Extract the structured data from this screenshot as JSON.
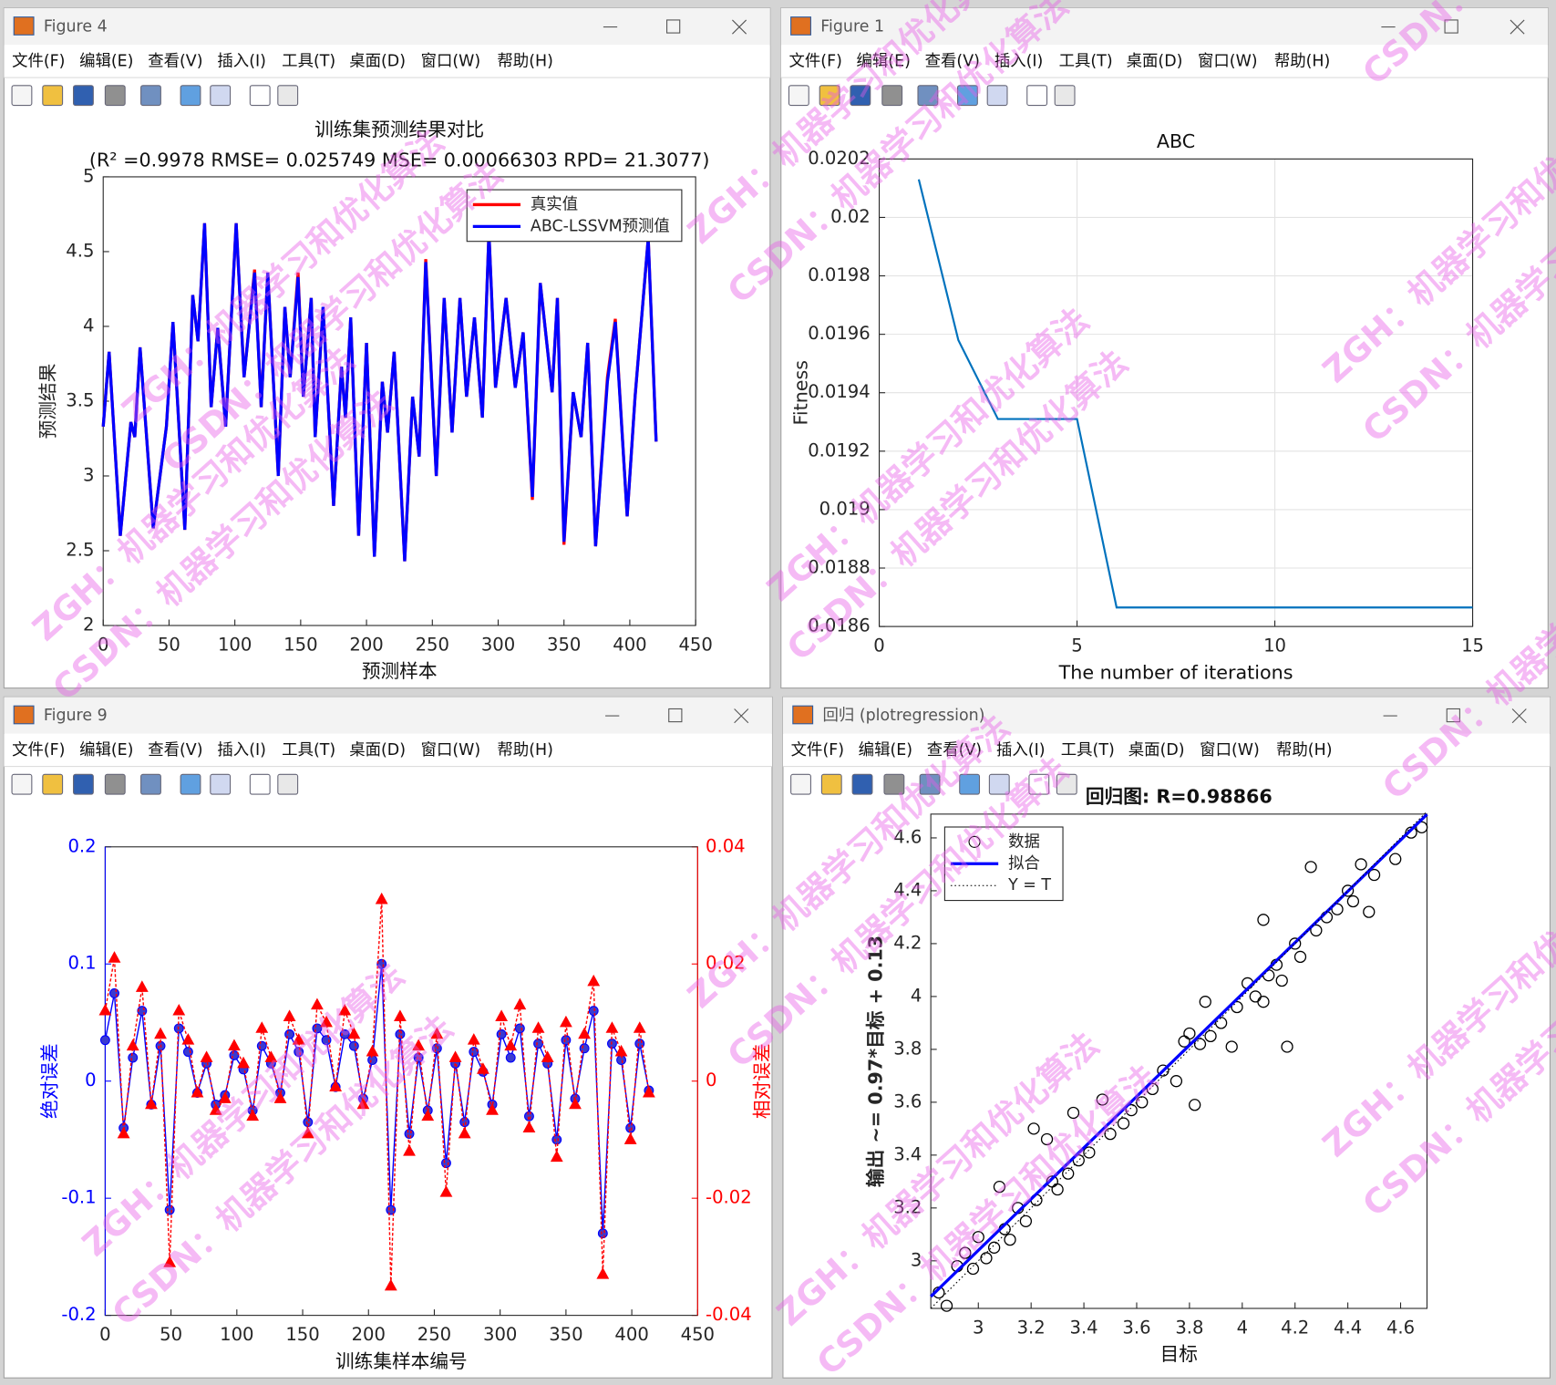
{
  "menu": [
    "文件(F)",
    "编辑(E)",
    "查看(V)",
    "插入(I)",
    "工具(T)",
    "桌面(D)",
    "窗口(W)",
    "帮助(H)"
  ],
  "watermarks": [
    "ZGH：机器学习和优化算法",
    "CSDN：机器学习和优化算法"
  ],
  "windows": [
    {
      "title": "Figure 4"
    },
    {
      "title": "Figure 1"
    },
    {
      "title": "Figure 9"
    },
    {
      "title": "回归 (plotregression)"
    }
  ],
  "chart_data": [
    {
      "type": "line",
      "title": "训练集预测结果对比",
      "subtitle": "(R² =0.9978 RMSE= 0.025749 MSE= 0.00066303 RPD= 21.3077)",
      "xlabel": "预测样本",
      "ylabel": "预测结果",
      "xlim": [
        0,
        450
      ],
      "ylim": [
        2,
        5
      ],
      "xticks": [
        0,
        50,
        100,
        150,
        200,
        250,
        300,
        350,
        400,
        450
      ],
      "yticks": [
        2,
        2.5,
        3,
        3.5,
        4,
        4.5,
        5
      ],
      "grid": false,
      "legend": "upper right",
      "x": [
        0,
        4.5,
        13,
        21,
        24,
        28,
        38,
        48,
        53,
        62,
        68,
        72,
        77,
        82,
        87,
        93,
        101,
        107,
        115,
        120,
        125,
        133,
        138,
        142,
        148,
        152,
        158,
        161,
        167,
        175,
        181,
        184,
        188,
        194,
        200,
        206,
        212,
        216,
        221,
        229,
        235,
        240,
        245,
        253,
        259,
        265,
        271,
        276,
        282,
        288,
        293,
        298,
        306,
        313,
        319,
        326,
        332,
        341,
        345,
        350,
        357,
        363,
        368,
        374,
        383,
        389,
        398,
        404,
        414,
        420
      ],
      "series": [
        {
          "name": "真实值",
          "color": "#ff0000",
          "style": "solid",
          "values": [
            3.33,
            3.83,
            2.6,
            3.36,
            3.26,
            3.86,
            2.65,
            3.33,
            4.03,
            2.64,
            4.21,
            3.9,
            4.69,
            3.46,
            3.99,
            3.33,
            4.69,
            3.66,
            4.38,
            3.46,
            4.36,
            3.0,
            4.13,
            3.66,
            4.36,
            3.53,
            4.19,
            3.26,
            4.13,
            2.8,
            3.73,
            3.39,
            4.06,
            2.6,
            3.89,
            2.46,
            3.63,
            3.29,
            3.83,
            2.43,
            3.53,
            3.13,
            4.45,
            3.0,
            4.19,
            3.29,
            4.19,
            3.53,
            4.06,
            3.39,
            4.63,
            3.59,
            4.19,
            3.59,
            3.96,
            2.84,
            4.29,
            3.56,
            4.19,
            2.54,
            3.56,
            3.26,
            3.89,
            2.53,
            3.66,
            4.05,
            2.73,
            3.53,
            4.59,
            3.23
          ]
        },
        {
          "name": "ABC-LSSVM预测值",
          "color": "#0000ff",
          "style": "solid",
          "values": [
            3.33,
            3.83,
            2.6,
            3.36,
            3.26,
            3.86,
            2.65,
            3.33,
            4.03,
            2.64,
            4.21,
            3.9,
            4.69,
            3.46,
            3.99,
            3.33,
            4.69,
            3.66,
            4.36,
            3.46,
            4.36,
            3.0,
            4.13,
            3.66,
            4.33,
            3.53,
            4.19,
            3.26,
            4.13,
            2.8,
            3.73,
            3.39,
            4.06,
            2.6,
            3.89,
            2.46,
            3.63,
            3.29,
            3.83,
            2.43,
            3.53,
            3.13,
            4.43,
            3.0,
            4.19,
            3.29,
            4.19,
            3.53,
            4.06,
            3.39,
            4.63,
            3.59,
            4.19,
            3.59,
            3.96,
            2.86,
            4.29,
            3.56,
            4.19,
            2.56,
            3.56,
            3.26,
            3.89,
            2.53,
            3.63,
            4.03,
            2.73,
            3.53,
            4.59,
            3.23
          ]
        }
      ]
    },
    {
      "type": "line",
      "title": "ABC",
      "xlabel": "The number of iterations",
      "ylabel": "Fitness",
      "xlim": [
        0,
        15
      ],
      "ylim": [
        0.0186,
        0.0202
      ],
      "xticks": [
        0,
        5,
        10,
        15
      ],
      "yticks": [
        0.0186,
        0.0188,
        0.019,
        0.0192,
        0.0194,
        0.0196,
        0.0198,
        0.02,
        0.0202
      ],
      "grid": true,
      "x": [
        1,
        2,
        3,
        4,
        5,
        6,
        7,
        8,
        9,
        10,
        11,
        12,
        13,
        14,
        15
      ],
      "series": [
        {
          "color": "#0072bd",
          "style": "solid",
          "values": [
            0.02013,
            0.01958,
            0.01931,
            0.01931,
            0.01931,
            0.018665,
            0.018665,
            0.018665,
            0.018665,
            0.018665,
            0.018665,
            0.018665,
            0.018665,
            0.018665,
            0.018665
          ]
        }
      ]
    },
    {
      "type": "stem",
      "xlabel": "训练集样本编号",
      "ylabel": "绝对误差",
      "y2label": "相对误差",
      "xlim": [
        0,
        450
      ],
      "ylim": [
        -0.2,
        0.2
      ],
      "y2lim": [
        -0.04,
        0.04
      ],
      "xticks": [
        0,
        50,
        100,
        150,
        200,
        250,
        300,
        350,
        400,
        450
      ],
      "yticks": [
        -0.2,
        -0.1,
        0,
        0.1,
        0.2
      ],
      "y2ticks": [
        -0.04,
        -0.02,
        0,
        0.02,
        0.04
      ],
      "grid": false,
      "x": [
        0,
        7,
        14,
        21,
        28,
        35,
        42,
        49,
        56,
        63,
        70,
        77,
        84,
        91,
        98,
        105,
        112,
        119,
        126,
        133,
        140,
        147,
        154,
        161,
        168,
        175,
        182,
        189,
        196,
        203,
        210,
        217,
        224,
        231,
        238,
        245,
        252,
        259,
        266,
        273,
        280,
        287,
        294,
        301,
        308,
        315,
        322,
        329,
        336,
        343,
        350,
        357,
        364,
        371,
        378,
        385,
        392,
        399,
        406,
        413
      ],
      "series": [
        {
          "color": "#0000ff",
          "axis": "y",
          "marker": "circle",
          "values": [
            0.035,
            0.075,
            -0.04,
            0.02,
            0.06,
            -0.02,
            0.03,
            -0.11,
            0.045,
            0.025,
            -0.01,
            0.015,
            -0.02,
            -0.012,
            0.022,
            0.01,
            -0.025,
            0.03,
            0.015,
            -0.01,
            0.04,
            0.025,
            -0.035,
            0.045,
            0.035,
            -0.005,
            0.04,
            0.03,
            -0.015,
            0.018,
            0.1,
            -0.11,
            0.04,
            -0.045,
            0.02,
            -0.025,
            0.028,
            -0.07,
            0.015,
            -0.035,
            0.025,
            0.008,
            -0.02,
            0.04,
            0.02,
            0.045,
            -0.03,
            0.032,
            0.015,
            -0.05,
            0.035,
            -0.015,
            0.028,
            0.06,
            -0.13,
            0.032,
            0.018,
            -0.04,
            0.032,
            -0.008
          ]
        },
        {
          "color": "#ff0000",
          "axis": "y2",
          "marker": "triangle",
          "values": [
            0.012,
            0.021,
            -0.009,
            0.006,
            0.016,
            -0.004,
            0.008,
            -0.031,
            0.012,
            0.007,
            -0.002,
            0.004,
            -0.005,
            -0.003,
            0.006,
            0.003,
            -0.006,
            0.009,
            0.004,
            -0.003,
            0.011,
            0.007,
            -0.009,
            0.013,
            0.01,
            -0.001,
            0.012,
            0.008,
            -0.004,
            0.005,
            0.031,
            -0.035,
            0.011,
            -0.012,
            0.006,
            -0.006,
            0.008,
            -0.019,
            0.004,
            -0.009,
            0.007,
            0.002,
            -0.005,
            0.011,
            0.006,
            0.013,
            -0.008,
            0.009,
            0.004,
            -0.013,
            0.01,
            -0.004,
            0.008,
            0.017,
            -0.033,
            0.009,
            0.005,
            -0.01,
            0.009,
            -0.002
          ]
        }
      ]
    },
    {
      "type": "scatter",
      "title": "回归图: R=0.98866",
      "xlabel": "目标",
      "ylabel": "输出 ~= 0.97*目标 + 0.13",
      "xlim": [
        2.82,
        4.7
      ],
      "ylim": [
        2.82,
        4.69
      ],
      "xticks": [
        3,
        3.2,
        3.4,
        3.6,
        3.8,
        4,
        4.2,
        4.4,
        4.6
      ],
      "yticks": [
        3,
        3.2,
        3.4,
        3.6,
        3.8,
        4,
        4.2,
        4.4,
        4.6
      ],
      "grid": false,
      "legend": "upper left",
      "series": [
        {
          "name": "数据",
          "color": "#000000",
          "style": "marker",
          "x": [
            2.85,
            2.88,
            2.92,
            2.95,
            2.98,
            3.0,
            3.03,
            3.06,
            3.08,
            3.1,
            3.12,
            3.15,
            3.18,
            3.21,
            3.22,
            3.26,
            3.28,
            3.3,
            3.34,
            3.36,
            3.38,
            3.42,
            3.47,
            3.5,
            3.55,
            3.58,
            3.62,
            3.66,
            3.7,
            3.75,
            3.78,
            3.8,
            3.82,
            3.84,
            3.86,
            3.88,
            3.92,
            3.96,
            3.98,
            4.02,
            4.05,
            4.08,
            4.08,
            4.1,
            4.13,
            4.15,
            4.17,
            4.2,
            4.22,
            4.26,
            4.28,
            4.32,
            4.36,
            4.4,
            4.42,
            4.45,
            4.48,
            4.5,
            4.58,
            4.64,
            4.68
          ],
          "values": [
            2.88,
            2.83,
            2.98,
            3.03,
            2.97,
            3.09,
            3.01,
            3.05,
            3.28,
            3.12,
            3.08,
            3.2,
            3.15,
            3.5,
            3.23,
            3.46,
            3.3,
            3.27,
            3.33,
            3.56,
            3.38,
            3.41,
            3.61,
            3.48,
            3.52,
            3.57,
            3.6,
            3.65,
            3.72,
            3.68,
            3.83,
            3.86,
            3.59,
            3.82,
            3.98,
            3.85,
            3.9,
            3.81,
            3.96,
            4.05,
            4.0,
            4.29,
            3.98,
            4.08,
            4.12,
            4.06,
            3.81,
            4.2,
            4.15,
            4.49,
            4.25,
            4.3,
            4.33,
            4.4,
            4.36,
            4.5,
            4.32,
            4.46,
            4.52,
            4.62,
            4.64
          ]
        },
        {
          "name": "拟合",
          "color": "#0000ff",
          "style": "solid",
          "x": [
            2.82,
            4.7
          ],
          "values": [
            2.865,
            4.689
          ]
        },
        {
          "name": "Y = T",
          "color": "#000000",
          "style": "dotted",
          "x": [
            2.82,
            4.7
          ],
          "values": [
            2.82,
            4.7
          ]
        }
      ]
    }
  ]
}
